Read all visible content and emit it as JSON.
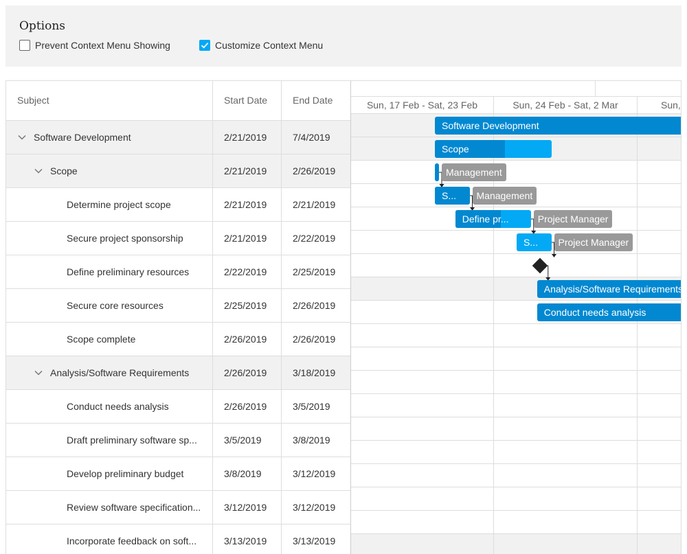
{
  "options": {
    "title": "Options",
    "prevent_label": "Prevent Context Menu Showing",
    "prevent_checked": false,
    "customize_label": "Customize Context Menu",
    "customize_checked": true
  },
  "tree": {
    "columns": [
      "Subject",
      "Start Date",
      "End Date"
    ],
    "rows": [
      {
        "subject": "Software Development",
        "start": "2/21/2019",
        "end": "7/4/2019",
        "level": 0,
        "group": true
      },
      {
        "subject": "Scope",
        "start": "2/21/2019",
        "end": "2/26/2019",
        "level": 1,
        "group": true
      },
      {
        "subject": "Determine project scope",
        "start": "2/21/2019",
        "end": "2/21/2019",
        "level": 2,
        "group": false
      },
      {
        "subject": "Secure project sponsorship",
        "start": "2/21/2019",
        "end": "2/22/2019",
        "level": 2,
        "group": false
      },
      {
        "subject": "Define preliminary resources",
        "start": "2/22/2019",
        "end": "2/25/2019",
        "level": 2,
        "group": false
      },
      {
        "subject": "Secure core resources",
        "start": "2/25/2019",
        "end": "2/26/2019",
        "level": 2,
        "group": false
      },
      {
        "subject": "Scope complete",
        "start": "2/26/2019",
        "end": "2/26/2019",
        "level": 2,
        "group": false
      },
      {
        "subject": "Analysis/Software Requirements",
        "start": "2/26/2019",
        "end": "3/18/2019",
        "level": 1,
        "group": true
      },
      {
        "subject": "Conduct needs analysis",
        "start": "2/26/2019",
        "end": "3/5/2019",
        "level": 2,
        "group": false
      },
      {
        "subject": "Draft preliminary software sp...",
        "start": "3/5/2019",
        "end": "3/8/2019",
        "level": 2,
        "group": false
      },
      {
        "subject": "Develop preliminary budget",
        "start": "3/8/2019",
        "end": "3/12/2019",
        "level": 2,
        "group": false
      },
      {
        "subject": "Review software specification...",
        "start": "3/12/2019",
        "end": "3/12/2019",
        "level": 2,
        "group": false
      },
      {
        "subject": "Incorporate feedback on soft...",
        "start": "3/13/2019",
        "end": "3/13/2019",
        "level": 2,
        "group": false
      }
    ]
  },
  "timeline": {
    "scale": [
      "Sun, 17 Feb - Sat, 23 Feb",
      "Sun, 24 Feb - Sat, 2 Mar",
      "Sun,"
    ]
  },
  "chart_data": {
    "type": "gantt",
    "scale_unit": "week",
    "tasks": [
      {
        "label": "Software Development",
        "start": "2019-02-21",
        "end": "2019-07-04",
        "kind": "summary",
        "progress": null,
        "resource": ""
      },
      {
        "label": "Scope",
        "start": "2019-02-21",
        "end": "2019-02-26",
        "kind": "summary",
        "progress": 0.6,
        "resource": ""
      },
      {
        "label": "",
        "start": "2019-02-21",
        "end": "2019-02-21",
        "kind": "task",
        "progress": 1.0,
        "resource": "Management"
      },
      {
        "label": "S...",
        "start": "2019-02-21",
        "end": "2019-02-22",
        "kind": "task",
        "progress": 1.0,
        "resource": "Management"
      },
      {
        "label": "Define pr...",
        "start": "2019-02-22",
        "end": "2019-02-25",
        "kind": "task",
        "progress": 0.6,
        "resource": "Project Manager"
      },
      {
        "label": "S...",
        "start": "2019-02-25",
        "end": "2019-02-26",
        "kind": "task",
        "progress": 0,
        "resource": "Project Manager"
      },
      {
        "label": "",
        "start": "2019-02-26",
        "end": "2019-02-26",
        "kind": "milestone",
        "progress": null,
        "resource": ""
      },
      {
        "label": "Analysis/Software Requirements",
        "start": "2019-02-26",
        "end": "2019-03-18",
        "kind": "summary",
        "progress": null,
        "resource": ""
      },
      {
        "label": "Conduct needs analysis",
        "start": "2019-02-26",
        "end": "2019-03-05",
        "kind": "summary",
        "progress": 1.0,
        "resource": ""
      }
    ]
  }
}
